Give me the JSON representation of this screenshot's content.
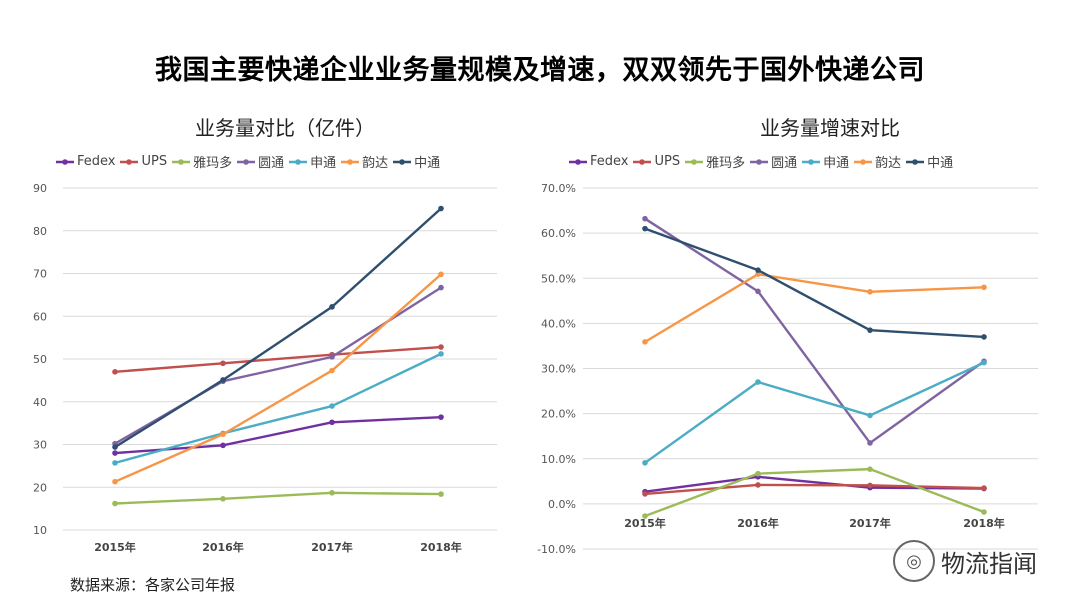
{
  "title": "我国主要快递企业业务量规模及增速，双双领先于国外快递公司",
  "source": "数据来源：各家公司年报",
  "watermark": {
    "text": "物流指闻",
    "icon": "wechat-icon"
  },
  "chart_data": [
    {
      "type": "line",
      "title": "业务量对比（亿件）",
      "categories": [
        "2015年",
        "2016年",
        "2017年",
        "2018年"
      ],
      "ylim": [
        10,
        90
      ],
      "yticks": [
        "90",
        "80",
        "70",
        "60",
        "50",
        "40",
        "30",
        "20",
        "10"
      ],
      "ytick_values": [
        90,
        80,
        70,
        60,
        50,
        40,
        30,
        20,
        10
      ],
      "grid": true,
      "legend": "top",
      "series": [
        {
          "name": "Fedex",
          "color": "#7030A0",
          "values": [
            28.0,
            29.8,
            35.2,
            36.4
          ]
        },
        {
          "name": "UPS",
          "color": "#C0504D",
          "values": [
            47.0,
            49.0,
            51.0,
            52.8
          ]
        },
        {
          "name": "雅玛多",
          "color": "#9BBB59",
          "values": [
            16.2,
            17.3,
            18.7,
            18.4
          ]
        },
        {
          "name": "圆通",
          "color": "#8064A2",
          "values": [
            30.2,
            44.8,
            50.5,
            66.7
          ]
        },
        {
          "name": "申通",
          "color": "#4BACC6",
          "values": [
            25.7,
            32.6,
            39.0,
            51.2
          ]
        },
        {
          "name": "韵达",
          "color": "#F79646",
          "values": [
            21.3,
            32.4,
            47.3,
            69.8
          ]
        },
        {
          "name": "中通",
          "color": "#2F4F6F",
          "values": [
            29.4,
            45.1,
            62.2,
            85.2
          ]
        }
      ]
    },
    {
      "type": "line",
      "title": "业务量增速对比",
      "categories": [
        "2015年",
        "2016年",
        "2017年",
        "2018年"
      ],
      "ylim": [
        -10,
        70
      ],
      "yticks": [
        "70.0%",
        "60.0%",
        "50.0%",
        "40.0%",
        "30.0%",
        "20.0%",
        "10.0%",
        "0.0%",
        "-10.0%"
      ],
      "ytick_values": [
        70,
        60,
        50,
        40,
        30,
        20,
        10,
        0,
        -10
      ],
      "grid": true,
      "legend": "top",
      "series": [
        {
          "name": "Fedex",
          "color": "#7030A0",
          "values": [
            2.7,
            6.0,
            3.6,
            3.4
          ]
        },
        {
          "name": "UPS",
          "color": "#C0504D",
          "values": [
            2.2,
            4.2,
            4.1,
            3.5
          ]
        },
        {
          "name": "雅玛多",
          "color": "#9BBB59",
          "values": [
            -2.7,
            6.7,
            7.7,
            -1.8
          ]
        },
        {
          "name": "圆通",
          "color": "#8064A2",
          "values": [
            63.2,
            47.1,
            13.5,
            31.6
          ]
        },
        {
          "name": "申通",
          "color": "#4BACC6",
          "values": [
            9.1,
            27.0,
            19.6,
            31.3
          ]
        },
        {
          "name": "韵达",
          "color": "#F79646",
          "values": [
            35.9,
            50.9,
            47.0,
            48.0
          ]
        },
        {
          "name": "中通",
          "color": "#2F4F6F",
          "values": [
            61.0,
            51.8,
            38.5,
            37.0
          ]
        }
      ]
    }
  ]
}
